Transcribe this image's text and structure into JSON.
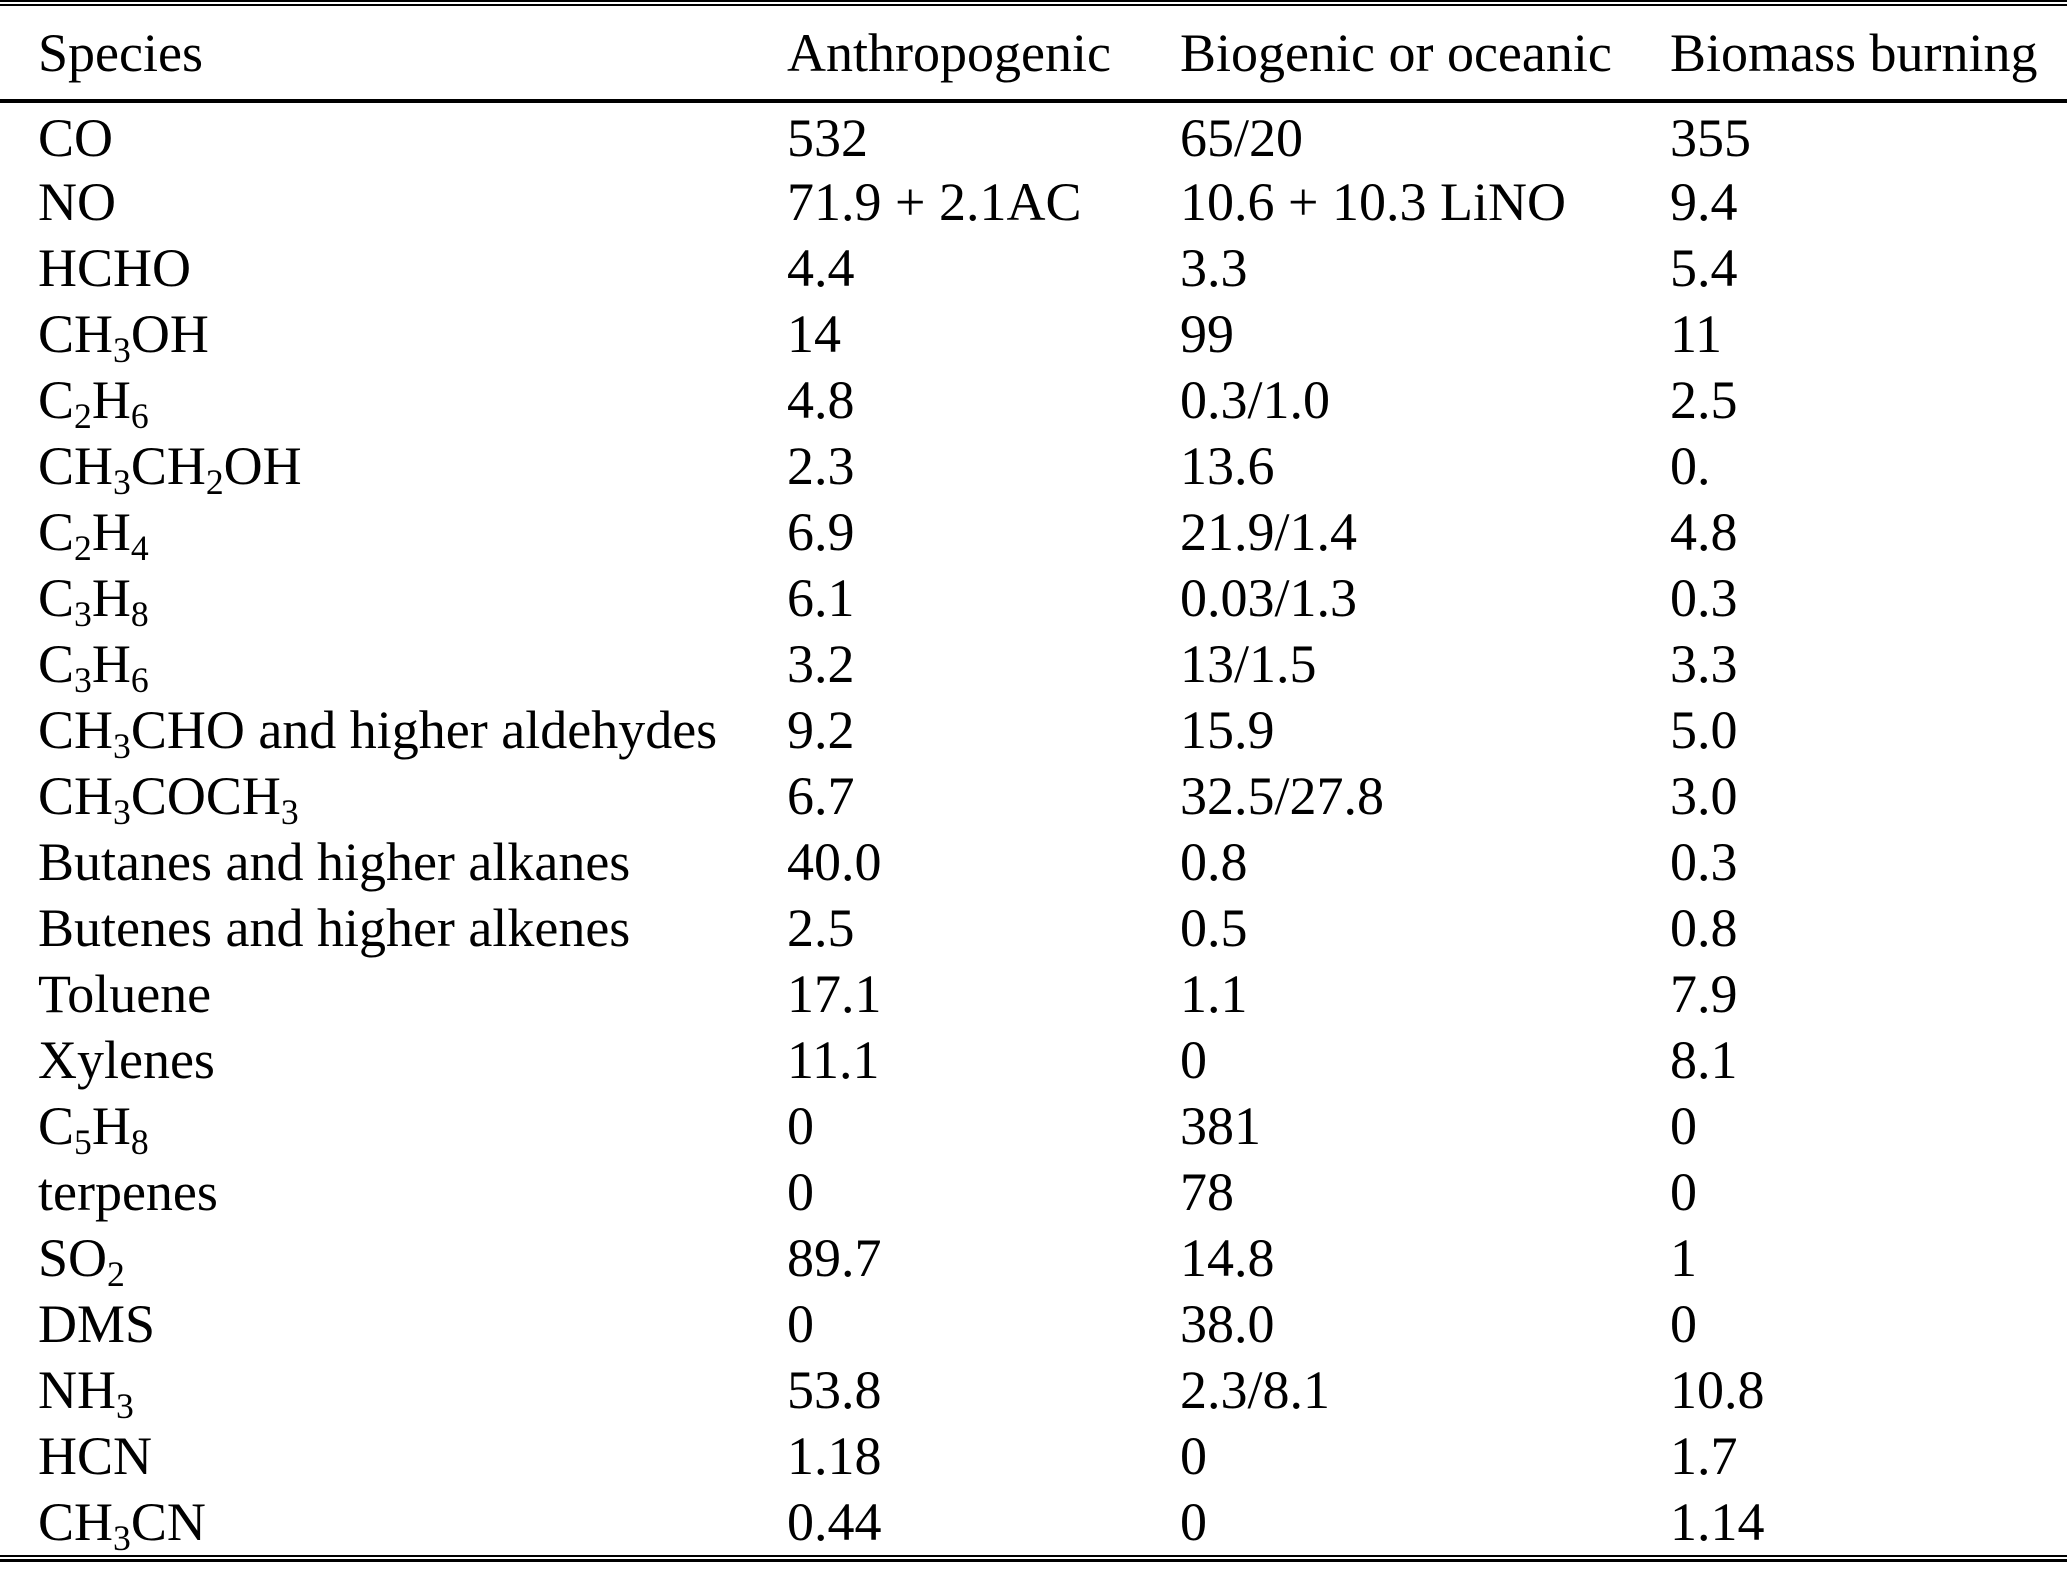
{
  "page": {
    "background": "#ffffff",
    "text_color": "#000000",
    "rule_color": "#000000"
  },
  "table": {
    "subscript_marker": "_",
    "columns": [
      {
        "key": "species",
        "label": "Species"
      },
      {
        "key": "anthropogenic",
        "label": "Anthropogenic"
      },
      {
        "key": "biogenic_oceanic",
        "label": "Biogenic or oceanic"
      },
      {
        "key": "biomass_burning",
        "label": "Biomass burning"
      }
    ],
    "rows": [
      {
        "species": "CO",
        "anthropogenic": "532",
        "biogenic_oceanic": "65/20",
        "biomass_burning": "355"
      },
      {
        "species": "NO",
        "anthropogenic": "71.9 + 2.1AC",
        "biogenic_oceanic": "10.6 + 10.3 LiNO",
        "biomass_burning": "9.4"
      },
      {
        "species": "HCHO",
        "anthropogenic": "4.4",
        "biogenic_oceanic": "3.3",
        "biomass_burning": "5.4"
      },
      {
        "species": "CH_3_OH",
        "anthropogenic": "14",
        "biogenic_oceanic": "99",
        "biomass_burning": "11"
      },
      {
        "species": "C_2_H_6_",
        "anthropogenic": "4.8",
        "biogenic_oceanic": "0.3/1.0",
        "biomass_burning": "2.5"
      },
      {
        "species": "CH_3_CH_2_OH",
        "anthropogenic": "2.3",
        "biogenic_oceanic": "13.6",
        "biomass_burning": "0."
      },
      {
        "species": "C_2_H_4_",
        "anthropogenic": "6.9",
        "biogenic_oceanic": "21.9/1.4",
        "biomass_burning": "4.8"
      },
      {
        "species": "C_3_H_8_",
        "anthropogenic": "6.1",
        "biogenic_oceanic": "0.03/1.3",
        "biomass_burning": "0.3"
      },
      {
        "species": "C_3_H_6_",
        "anthropogenic": "3.2",
        "biogenic_oceanic": "13/1.5",
        "biomass_burning": "3.3"
      },
      {
        "species": "CH_3_CHO and higher aldehydes",
        "anthropogenic": "9.2",
        "biogenic_oceanic": "15.9",
        "biomass_burning": "5.0"
      },
      {
        "species": "CH_3_COCH_3_",
        "anthropogenic": "6.7",
        "biogenic_oceanic": "32.5/27.8",
        "biomass_burning": "3.0"
      },
      {
        "species": "Butanes and higher alkanes",
        "anthropogenic": "40.0",
        "biogenic_oceanic": "0.8",
        "biomass_burning": "0.3"
      },
      {
        "species": "Butenes and higher alkenes",
        "anthropogenic": "2.5",
        "biogenic_oceanic": "0.5",
        "biomass_burning": "0.8"
      },
      {
        "species": "Toluene",
        "anthropogenic": "17.1",
        "biogenic_oceanic": "1.1",
        "biomass_burning": "7.9"
      },
      {
        "species": "Xylenes",
        "anthropogenic": "11.1",
        "biogenic_oceanic": "0",
        "biomass_burning": "8.1"
      },
      {
        "species": "C_5_H_8_",
        "anthropogenic": "0",
        "biogenic_oceanic": "381",
        "biomass_burning": "0"
      },
      {
        "species": "terpenes",
        "anthropogenic": "0",
        "biogenic_oceanic": "78",
        "biomass_burning": "0"
      },
      {
        "species": "SO_2_",
        "anthropogenic": "89.7",
        "biogenic_oceanic": "14.8",
        "biomass_burning": "1"
      },
      {
        "species": "DMS",
        "anthropogenic": "0",
        "biogenic_oceanic": "38.0",
        "biomass_burning": "0"
      },
      {
        "species": "NH_3_",
        "anthropogenic": "53.8",
        "biogenic_oceanic": "2.3/8.1",
        "biomass_burning": "10.8"
      },
      {
        "species": "HCN",
        "anthropogenic": "1.18",
        "biogenic_oceanic": "0",
        "biomass_burning": "1.7"
      },
      {
        "species": "CH_3_CN",
        "anthropogenic": "0.44",
        "biogenic_oceanic": "0",
        "biomass_burning": "1.14"
      }
    ]
  }
}
